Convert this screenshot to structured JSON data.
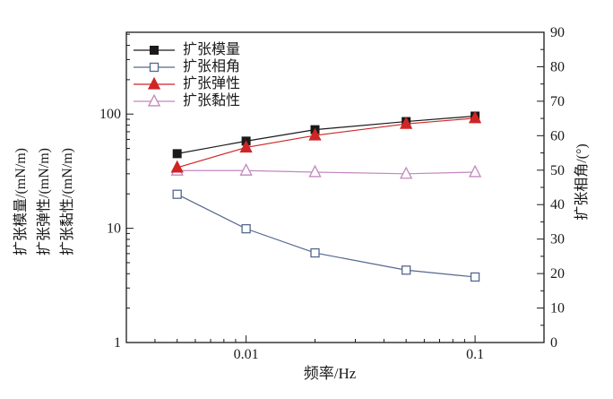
{
  "chart_data": {
    "type": "line",
    "title": "",
    "xlabel": "频率/Hz",
    "ylabel_left_lines": [
      "扩张模量/(mN/m)",
      "扩张弹性/(mN/m)",
      "扩张黏性/(mN/m)"
    ],
    "ylabel_right": "扩张相角/(°)",
    "x": [
      0.005,
      0.01,
      0.02,
      0.05,
      0.1
    ],
    "x_axis": {
      "scale": "log",
      "min": 0.003,
      "max": 0.2,
      "labeled_ticks": [
        0.01,
        0.1
      ],
      "tick_label_texts": [
        "0.01",
        "0.1"
      ]
    },
    "y_left_axis": {
      "scale": "log",
      "min": 1,
      "max": 520,
      "labeled_ticks": [
        1,
        10,
        100
      ],
      "tick_label_texts": [
        "1",
        "10",
        "100"
      ]
    },
    "y_right_axis": {
      "scale": "linear",
      "min": 0,
      "max": 90,
      "major_step": 10,
      "minor_step": 5
    },
    "legend_position": "top-left-inside",
    "grid": "off",
    "axis_color": "#1a1a1a",
    "series": [
      {
        "id": "modulus",
        "name": "扩张模量",
        "axis": "left",
        "color": "#1a1a1a",
        "marker": "square-filled",
        "values": [
          45,
          58,
          73,
          86,
          96
        ]
      },
      {
        "id": "phase-angle",
        "name": "扩张相角",
        "axis": "right",
        "color": "#54678f",
        "marker": "square-open",
        "values": [
          43,
          33,
          26,
          21,
          19
        ]
      },
      {
        "id": "elasticity",
        "name": "扩张弹性",
        "axis": "left",
        "color": "#cf2526",
        "marker": "triangle-filled",
        "values": [
          34,
          51,
          65,
          82,
          92
        ]
      },
      {
        "id": "viscosity",
        "name": "扩张黏性",
        "axis": "left",
        "color": "#c287be",
        "marker": "triangle-open",
        "values": [
          32,
          32,
          31,
          30,
          31
        ]
      }
    ]
  }
}
